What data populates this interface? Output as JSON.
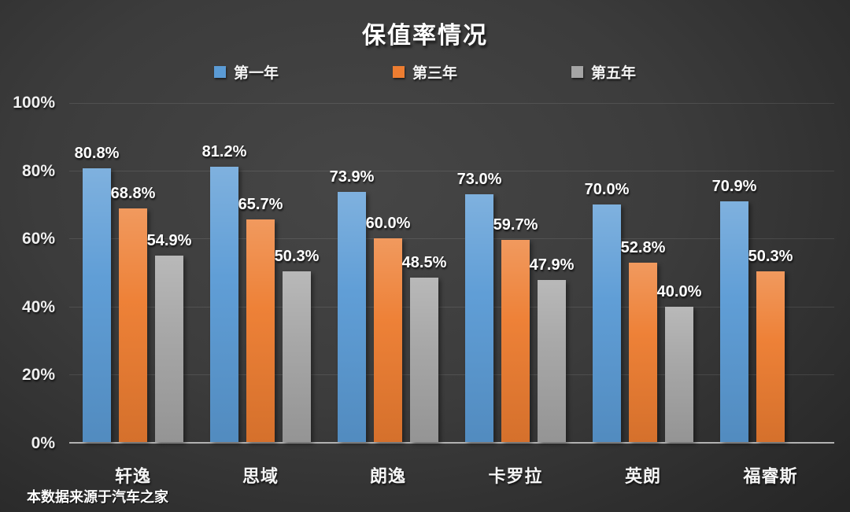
{
  "title": "保值率情况",
  "footer": {
    "source_note": "本数据来源于汽车之家"
  },
  "colors": {
    "series_first_year": "#5B9BD5",
    "series_third_year": "#ED7D31",
    "series_fifth_year": "#A5A5A5",
    "background_center": "#464646",
    "background_edge": "#242424",
    "axis_line": "#B2B2B2",
    "text": "#FFFFFF"
  },
  "chart_data": {
    "type": "bar",
    "title": "保值率情况",
    "categories": [
      "轩逸",
      "思域",
      "朗逸",
      "卡罗拉",
      "英朗",
      "福睿斯"
    ],
    "series": [
      {
        "name": "第一年",
        "color": "#5B9BD5",
        "values": [
          80.8,
          81.2,
          73.9,
          73.0,
          70.0,
          70.9
        ]
      },
      {
        "name": "第三年",
        "color": "#ED7D31",
        "values": [
          68.8,
          65.7,
          60.0,
          59.7,
          52.8,
          50.3
        ]
      },
      {
        "name": "第五年",
        "color": "#A5A5A5",
        "values": [
          54.9,
          50.3,
          48.5,
          47.9,
          40.0,
          null
        ]
      }
    ],
    "data_labels": [
      [
        "80.8%",
        "81.2%",
        "73.9%",
        "73.0%",
        "70.0%",
        "70.9%"
      ],
      [
        "68.8%",
        "65.7%",
        "60.0%",
        "59.7%",
        "52.8%",
        "50.3%"
      ],
      [
        "54.9%",
        "50.3%",
        "48.5%",
        "47.9%",
        "40.0%",
        null
      ]
    ],
    "xlabel": "",
    "ylabel": "",
    "ylim": [
      0,
      100
    ],
    "y_ticks": [
      "100%",
      "80%",
      "60%",
      "40%",
      "20%",
      "0%"
    ],
    "grid": true,
    "legend_position": "top",
    "source_note": "本数据来源于汽车之家"
  }
}
